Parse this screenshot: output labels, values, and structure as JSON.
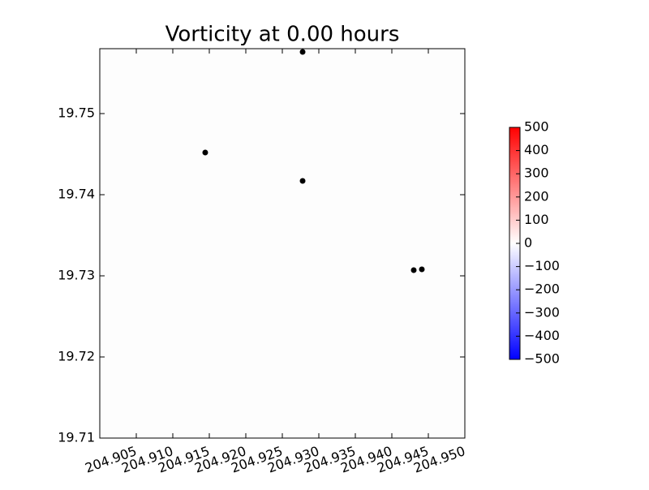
{
  "chart_data": {
    "type": "scatter",
    "title": "Vorticity at 0.00 hours",
    "x": [
      204.92778,
      204.91444,
      204.92778,
      204.943,
      204.94411
    ],
    "values": [
      19.7576,
      19.7452,
      19.7417,
      19.7307,
      19.7308
    ],
    "color": "#000000",
    "xlim": [
      204.9,
      204.95
    ],
    "xticks": [
      204.905,
      {
        "value": 204.91,
        "label": "204.910"
      },
      204.915,
      {
        "value": 204.92,
        "label": "204.920"
      },
      204.925,
      {
        "value": 204.93,
        "label": "204.930"
      },
      204.935,
      {
        "value": 204.94,
        "label": "204.940"
      },
      204.945,
      {
        "value": 204.95,
        "label": "204.950"
      }
    ],
    "ylim": [
      19.71,
      19.758
    ],
    "yticks": [
      19.71,
      19.72,
      19.73,
      19.74,
      19.75
    ],
    "colorbar": {
      "lim": [
        -500,
        500
      ],
      "ticks": [
        {
          "value": -500,
          "label": "−500"
        },
        {
          "value": -400,
          "label": "−400"
        },
        {
          "value": -300,
          "label": "−300"
        },
        {
          "value": -200,
          "label": "−200"
        },
        {
          "value": -100,
          "label": "−100"
        },
        0,
        100,
        200,
        300,
        400,
        500
      ],
      "colors": [
        "#0000ff",
        "#ffffff",
        "#ff0000"
      ]
    }
  }
}
